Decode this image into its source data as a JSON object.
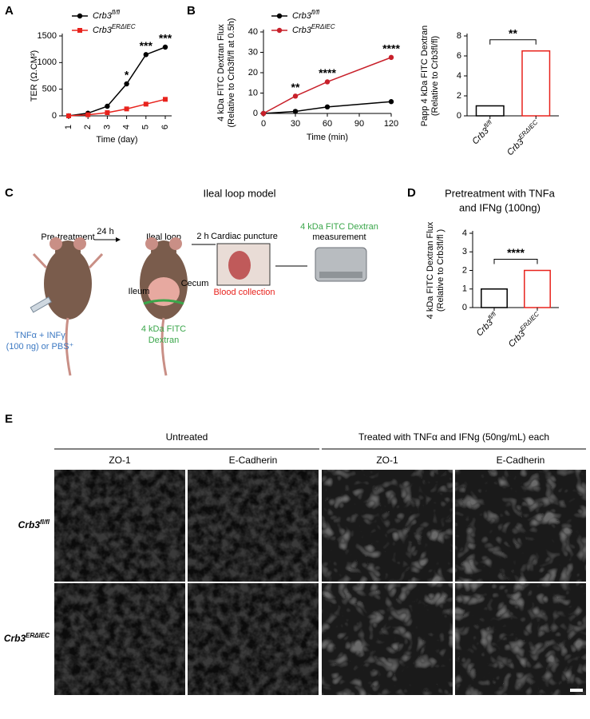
{
  "chart_data": [
    {
      "type": "line",
      "panel": "A",
      "ylabel": [
        "TER (Ω.CM²)"
      ],
      "xlabel": "Time (day)",
      "categories": [
        "1",
        "2",
        "3",
        "4",
        "5",
        "6"
      ],
      "ylim": [
        0,
        1500
      ],
      "yticks": [
        0,
        500,
        1000,
        1500
      ],
      "series": [
        {
          "name": "Crb3fl/fl",
          "color": "#000000",
          "marker": "circle",
          "values": [
            0,
            50,
            180,
            600,
            1150,
            1290
          ]
        },
        {
          "name": "Crb3ERΔIEC",
          "color": "#e8231d",
          "marker": "square",
          "values": [
            0,
            20,
            60,
            130,
            220,
            310
          ]
        }
      ],
      "significance": [
        null,
        null,
        null,
        "*",
        "***",
        "***"
      ]
    },
    {
      "type": "line",
      "panel": "B",
      "ylabel": [
        "4 kDa FITC Dextran Flux",
        "(Relative to Crb3fl/fl at 0.5h)"
      ],
      "xlabel": "Time (min)",
      "x": [
        0,
        30,
        60,
        120
      ],
      "xlim": [
        0,
        120
      ],
      "xticks": [
        0,
        30,
        60,
        90,
        120
      ],
      "ylim": [
        0,
        40
      ],
      "yticks": [
        0,
        10,
        20,
        30,
        40
      ],
      "series": [
        {
          "name": "Crb3fl/fl",
          "color": "#000000",
          "marker": "circle",
          "values": [
            0,
            1,
            3.2,
            5.8
          ]
        },
        {
          "name": "Crb3ERΔIEC",
          "color": "#c8202a",
          "marker": "circle",
          "values": [
            0,
            8.5,
            15.5,
            27.5
          ]
        }
      ],
      "significance": [
        null,
        "**",
        "****",
        "****"
      ]
    },
    {
      "type": "bar",
      "ylabel": [
        "Papp 4 kDa FITC Dextran",
        "(Relative to Crb3fl/fl)"
      ],
      "categories": [
        "Crb3fl/fl",
        "Crb3ERΔIEC"
      ],
      "values": [
        1.0,
        6.5
      ],
      "colors": [
        "#000000",
        "#e8231d"
      ],
      "ylim": [
        0,
        8
      ],
      "yticks": [
        0,
        2,
        4,
        6,
        8
      ],
      "significance": "**"
    },
    {
      "type": "bar",
      "panel": "D",
      "title": [
        "Pretreatment with TNFa",
        "and IFNg (100ng)"
      ],
      "ylabel": [
        "4 kDa FITC Dextran Flux",
        "(Relative to Crb3fl/fl )"
      ],
      "categories": [
        "Crb3fl/fl",
        "Crb3ERΔIEC"
      ],
      "values": [
        1.0,
        2.0
      ],
      "colors": [
        "#000000",
        "#e8231d"
      ],
      "ylim": [
        0,
        4
      ],
      "yticks": [
        0,
        1,
        2,
        3,
        4
      ],
      "significance": "****"
    }
  ],
  "diagram": {
    "panel": "C",
    "title": "Ileal loop model",
    "pretreatment": "Pre-treatment",
    "loop": "Ileal loop",
    "step1": "24 h",
    "step2": "2 h",
    "ileum": "Ileum",
    "cecum": "Cecum",
    "puncture": "Cardiac puncture",
    "blood": "Blood collection",
    "measure": [
      "4 kDa FITC Dextran",
      "measurement"
    ],
    "injection": [
      "TNFα + INFγ",
      "(100 ng) or PBS⁺"
    ],
    "dextran": [
      "4 kDa FITC",
      "Dextran"
    ]
  },
  "micrographs": {
    "panel": "E",
    "groups": [
      "Untreated",
      "Treated with TNFα and IFNg (50ng/mL) each"
    ],
    "columns": [
      "ZO-1",
      "E-Cadherin",
      "ZO-1",
      "E-Cadherin"
    ],
    "rows": [
      "Crb3fl/fl",
      "Crb3ERΔIEC"
    ]
  }
}
